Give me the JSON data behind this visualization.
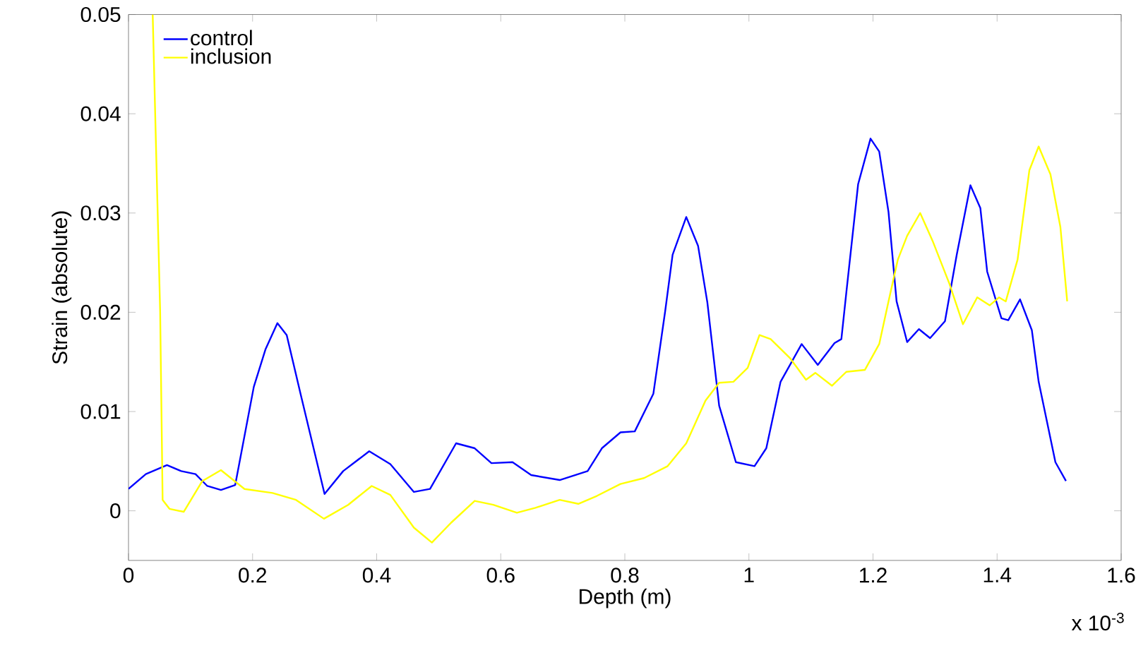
{
  "chart_data": {
    "type": "line",
    "xlabel": "Depth (m)",
    "ylabel": "Strain (absolute)",
    "annotations": [
      "x 10$^{-3}$"
    ],
    "xlim": [
      0,
      1.6
    ],
    "ylim": [
      -0.005,
      0.05
    ],
    "xticks": [
      0,
      0.2,
      0.4,
      0.6,
      0.8,
      1,
      1.2,
      1.4,
      1.6
    ],
    "yticks": [
      0,
      0.01,
      0.02,
      0.03,
      0.04,
      0.05
    ],
    "legend": "top left",
    "line_style": "solid",
    "series": [
      {
        "name": "control",
        "color": "#0000ff",
        "x": [
          0,
          0.028,
          0.062,
          0.085,
          0.108,
          0.127,
          0.149,
          0.172,
          0.202,
          0.221,
          0.24,
          0.255,
          0.278,
          0.316,
          0.346,
          0.388,
          0.422,
          0.46,
          0.486,
          0.528,
          0.558,
          0.585,
          0.619,
          0.649,
          0.695,
          0.74,
          0.763,
          0.793,
          0.816,
          0.846,
          0.865,
          0.877,
          0.899,
          0.918,
          0.933,
          0.952,
          0.979,
          1.009,
          1.028,
          1.051,
          1.085,
          1.111,
          1.138,
          1.149,
          1.157,
          1.176,
          1.196,
          1.21,
          1.225,
          1.238,
          1.255,
          1.274,
          1.292,
          1.316,
          1.335,
          1.357,
          1.373,
          1.384,
          1.407,
          1.418,
          1.437,
          1.456,
          1.467,
          1.494,
          1.511
        ],
        "values": [
          0.0022,
          0.0037,
          0.0046,
          0.004,
          0.0037,
          0.0025,
          0.0021,
          0.0026,
          0.0125,
          0.0163,
          0.0189,
          0.0177,
          0.0116,
          0.0017,
          0.004,
          0.006,
          0.0047,
          0.0019,
          0.0022,
          0.0068,
          0.0063,
          0.0048,
          0.0049,
          0.0036,
          0.0031,
          0.004,
          0.0063,
          0.0079,
          0.008,
          0.0118,
          0.0201,
          0.0258,
          0.0296,
          0.0267,
          0.021,
          0.0106,
          0.0049,
          0.0045,
          0.0063,
          0.013,
          0.0168,
          0.0147,
          0.0169,
          0.0173,
          0.022,
          0.0329,
          0.0375,
          0.0362,
          0.0301,
          0.0211,
          0.017,
          0.0183,
          0.0174,
          0.0191,
          0.0258,
          0.0328,
          0.0305,
          0.0241,
          0.0194,
          0.0192,
          0.0213,
          0.0182,
          0.013,
          0.0049,
          0.003
        ]
      },
      {
        "name": "inclusion",
        "color": "#ffff00",
        "x": [
          0.039,
          0.051,
          0.055,
          0.066,
          0.089,
          0.119,
          0.149,
          0.171,
          0.187,
          0.232,
          0.27,
          0.315,
          0.354,
          0.392,
          0.422,
          0.46,
          0.489,
          0.52,
          0.558,
          0.588,
          0.626,
          0.656,
          0.695,
          0.725,
          0.755,
          0.793,
          0.831,
          0.869,
          0.899,
          0.93,
          0.952,
          0.975,
          0.998,
          1.017,
          1.035,
          1.066,
          1.092,
          1.107,
          1.134,
          1.157,
          1.187,
          1.21,
          1.225,
          1.24,
          1.255,
          1.276,
          1.296,
          1.323,
          1.345,
          1.368,
          1.388,
          1.403,
          1.414,
          1.433,
          1.452,
          1.467,
          1.486,
          1.502,
          1.513
        ],
        "values": [
          0.05,
          0.0201,
          0.0011,
          0.0002,
          -0.0001,
          0.003,
          0.0041,
          0.003,
          0.0022,
          0.0018,
          0.0011,
          -0.0008,
          0.0006,
          0.0025,
          0.0016,
          -0.0017,
          -0.0032,
          -0.0012,
          0.001,
          0.0006,
          -0.0002,
          0.0003,
          0.0011,
          0.0007,
          0.0015,
          0.0027,
          0.0033,
          0.0045,
          0.0068,
          0.0111,
          0.0129,
          0.013,
          0.0144,
          0.0177,
          0.0173,
          0.0154,
          0.0132,
          0.0139,
          0.0126,
          0.014,
          0.0142,
          0.0168,
          0.0211,
          0.0253,
          0.0277,
          0.03,
          0.0272,
          0.0229,
          0.0188,
          0.0215,
          0.0207,
          0.0215,
          0.0211,
          0.0253,
          0.0343,
          0.0367,
          0.0339,
          0.0286,
          0.0211
        ]
      }
    ]
  }
}
